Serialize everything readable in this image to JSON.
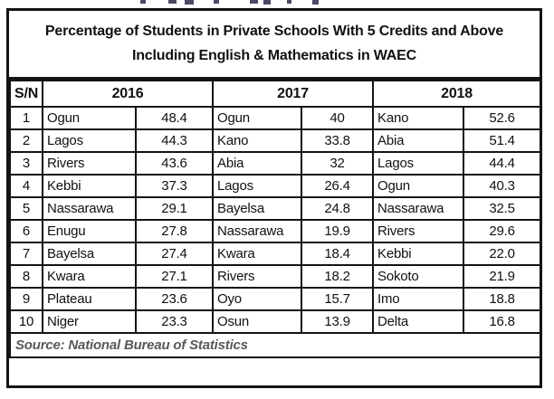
{
  "title": {
    "line1": "Percentage of Students in Private Schools With 5 Credits and Above",
    "line2": "Including English & Mathematics in WAEC"
  },
  "table": {
    "sn_header": "S/N",
    "year_headers": [
      "2016",
      "2017",
      "2018"
    ],
    "rows": [
      {
        "cells": [
          "1",
          "Ogun",
          "48.4",
          "Ogun",
          "40",
          "Kano",
          "52.6"
        ]
      },
      {
        "cells": [
          "2",
          "Lagos",
          "44.3",
          "Kano",
          "33.8",
          "Abia",
          "51.4"
        ]
      },
      {
        "cells": [
          "3",
          "Rivers",
          "43.6",
          "Abia",
          "32",
          "Lagos",
          "44.4"
        ]
      },
      {
        "cells": [
          "4",
          "Kebbi",
          "37.3",
          "Lagos",
          "26.4",
          "Ogun",
          "40.3"
        ]
      },
      {
        "cells": [
          "5",
          "Nassarawa",
          "29.1",
          "Bayelsa",
          "24.8",
          "Nassarawa",
          "32.5"
        ]
      },
      {
        "cells": [
          "6",
          "Enugu",
          "27.8",
          "Nassarawa",
          "19.9",
          "Rivers",
          "29.6"
        ]
      },
      {
        "cells": [
          "7",
          "Bayelsa",
          "27.4",
          "Kwara",
          "18.4",
          "Kebbi",
          "22.0"
        ]
      },
      {
        "cells": [
          "8",
          "Kwara",
          "27.1",
          "Rivers",
          "18.2",
          "Sokoto",
          "21.9"
        ]
      },
      {
        "cells": [
          "9",
          "Plateau",
          "23.6",
          "Oyo",
          "15.7",
          "Imo",
          "18.8"
        ]
      },
      {
        "cells": [
          "10",
          "Niger",
          "23.3",
          "Osun",
          "13.9",
          "Delta",
          "16.8"
        ]
      }
    ]
  },
  "source_note": "Source: National Bureau of Statistics",
  "colors": {
    "border": "#141414",
    "text": "#111111",
    "source_text": "#595959",
    "background": "#ffffff"
  },
  "chart_data": {
    "type": "table",
    "title": "Percentage of Students in Private Schools With 5 Credits and Above Including English & Mathematics in WAEC",
    "columns": [
      "S/N",
      "2016 State",
      "2016 %",
      "2017 State",
      "2017 %",
      "2018 State",
      "2018 %"
    ],
    "rows": [
      [
        1,
        "Ogun",
        48.4,
        "Ogun",
        40,
        "Kano",
        52.6
      ],
      [
        2,
        "Lagos",
        44.3,
        "Kano",
        33.8,
        "Abia",
        51.4
      ],
      [
        3,
        "Rivers",
        43.6,
        "Abia",
        32,
        "Lagos",
        44.4
      ],
      [
        4,
        "Kebbi",
        37.3,
        "Lagos",
        26.4,
        "Ogun",
        40.3
      ],
      [
        5,
        "Nassarawa",
        29.1,
        "Bayelsa",
        24.8,
        "Nassarawa",
        32.5
      ],
      [
        6,
        "Enugu",
        27.8,
        "Nassarawa",
        19.9,
        "Rivers",
        29.6
      ],
      [
        7,
        "Bayelsa",
        27.4,
        "Kwara",
        18.4,
        "Kebbi",
        22.0
      ],
      [
        8,
        "Kwara",
        27.1,
        "Rivers",
        18.2,
        "Sokoto",
        21.9
      ],
      [
        9,
        "Plateau",
        23.6,
        "Oyo",
        15.7,
        "Imo",
        18.8
      ],
      [
        10,
        "Niger",
        23.3,
        "Osun",
        13.9,
        "Delta",
        16.8
      ]
    ],
    "source": "Source: National Bureau of Statistics"
  }
}
